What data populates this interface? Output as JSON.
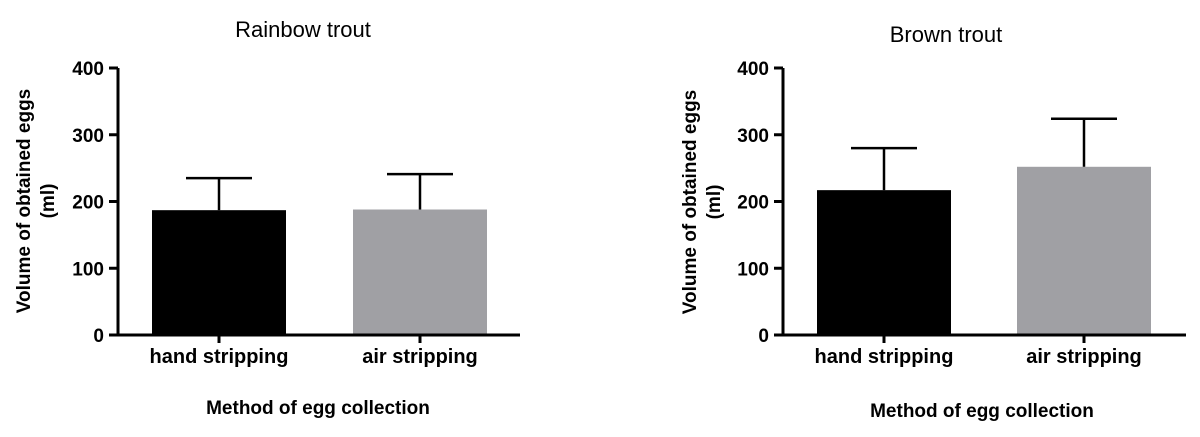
{
  "chart_data": [
    {
      "type": "bar",
      "title": "Rainbow trout",
      "xlabel": "Method of egg collection",
      "ylabel_lines": [
        "Volume of obtained eggs",
        "(ml)"
      ],
      "categories": [
        "hand stripping",
        "air stripping"
      ],
      "values": [
        187,
        188
      ],
      "error_upper": [
        235,
        241
      ],
      "colors": [
        "#000000",
        "#a0a0a4"
      ],
      "ylim": [
        0,
        400
      ],
      "yticks": [
        0,
        100,
        200,
        300,
        400
      ],
      "grid": false
    },
    {
      "type": "bar",
      "title": "Brown trout",
      "xlabel": "Method of egg collection",
      "ylabel_lines": [
        "Volume of obtained eggs",
        "(ml)"
      ],
      "categories": [
        "hand stripping",
        "air stripping"
      ],
      "values": [
        217,
        252
      ],
      "error_upper": [
        280,
        324
      ],
      "colors": [
        "#000000",
        "#a0a0a4"
      ],
      "ylim": [
        0,
        400
      ],
      "yticks": [
        0,
        100,
        200,
        300,
        400
      ],
      "grid": false
    }
  ]
}
